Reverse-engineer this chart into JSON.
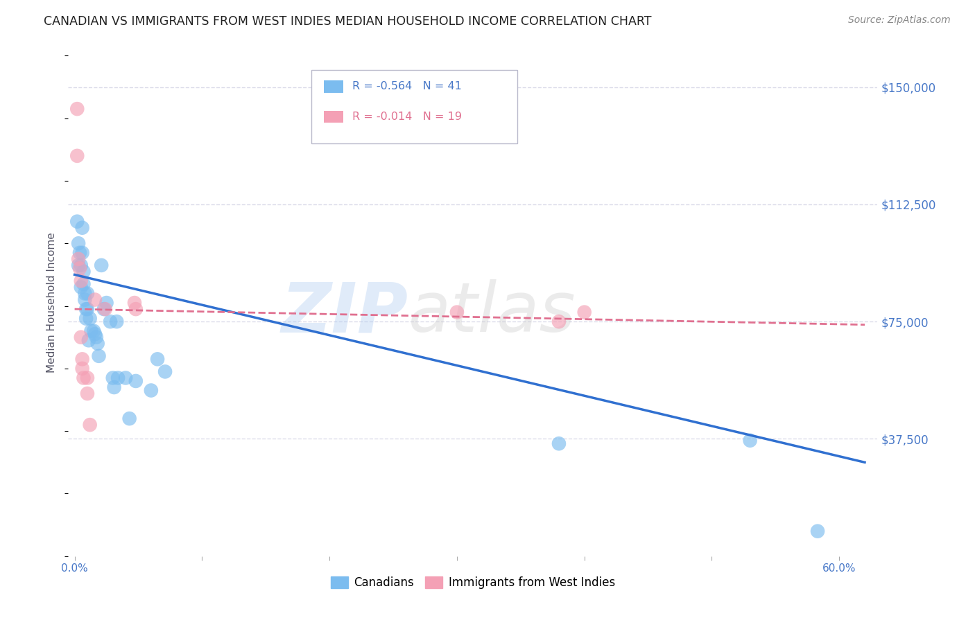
{
  "title": "CANADIAN VS IMMIGRANTS FROM WEST INDIES MEDIAN HOUSEHOLD INCOME CORRELATION CHART",
  "source": "Source: ZipAtlas.com",
  "ylabel": "Median Household Income",
  "yticks": [
    0,
    37500,
    75000,
    112500,
    150000
  ],
  "ytick_labels": [
    "",
    "$37,500",
    "$75,000",
    "$112,500",
    "$150,000"
  ],
  "ylim": [
    0,
    162000
  ],
  "xlim": [
    -0.005,
    0.63
  ],
  "xticks": [
    0.0,
    0.1,
    0.2,
    0.3,
    0.4,
    0.5,
    0.6
  ],
  "xtick_labels_show": [
    "0.0%",
    "",
    "",
    "",
    "",
    "",
    "60.0%"
  ],
  "watermark": "ZIPatlas",
  "legend_blue_r": "-0.564",
  "legend_blue_n": "41",
  "legend_pink_r": "-0.014",
  "legend_pink_n": "19",
  "blue_color": "#7bbcef",
  "pink_color": "#f4a0b5",
  "blue_line_color": "#3070d0",
  "pink_line_color": "#e07090",
  "canadians_x": [
    0.002,
    0.003,
    0.003,
    0.004,
    0.005,
    0.005,
    0.006,
    0.006,
    0.007,
    0.007,
    0.008,
    0.008,
    0.009,
    0.009,
    0.01,
    0.01,
    0.011,
    0.012,
    0.013,
    0.015,
    0.016,
    0.017,
    0.018,
    0.019,
    0.021,
    0.023,
    0.025,
    0.028,
    0.03,
    0.031,
    0.033,
    0.034,
    0.04,
    0.043,
    0.048,
    0.06,
    0.065,
    0.071,
    0.38,
    0.53,
    0.583
  ],
  "canadians_y": [
    107000,
    100000,
    93000,
    97000,
    93000,
    86000,
    105000,
    97000,
    87000,
    91000,
    84000,
    82000,
    79000,
    76000,
    84000,
    79000,
    69000,
    76000,
    72000,
    72000,
    71000,
    70000,
    68000,
    64000,
    93000,
    79000,
    81000,
    75000,
    57000,
    54000,
    75000,
    57000,
    57000,
    44000,
    56000,
    53000,
    63000,
    59000,
    36000,
    37000,
    8000
  ],
  "westindies_x": [
    0.002,
    0.002,
    0.003,
    0.004,
    0.005,
    0.005,
    0.006,
    0.006,
    0.007,
    0.01,
    0.01,
    0.012,
    0.016,
    0.024,
    0.047,
    0.048,
    0.3,
    0.38,
    0.4
  ],
  "westindies_y": [
    143000,
    128000,
    95000,
    92000,
    88000,
    70000,
    63000,
    60000,
    57000,
    57000,
    52000,
    42000,
    82000,
    79000,
    81000,
    79000,
    78000,
    75000,
    78000
  ],
  "blue_trend_x": [
    0.0,
    0.62
  ],
  "blue_trend_y": [
    90000,
    30000
  ],
  "pink_trend_x": [
    0.0,
    0.62
  ],
  "pink_trend_y": [
    79000,
    74000
  ],
  "background_color": "#ffffff",
  "grid_color": "#d8d8e8",
  "title_fontsize": 12.5,
  "source_fontsize": 10,
  "axis_label_color": "#4878c8",
  "tick_color": "#4878c8",
  "ylabel_color": "#555566"
}
